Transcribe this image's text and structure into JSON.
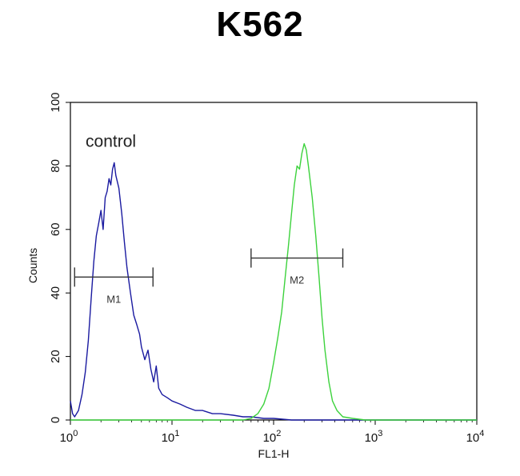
{
  "chart_data": {
    "type": "line",
    "title": "K562",
    "xlabel": "FL1-H",
    "ylabel": "Counts",
    "x_scale": "log",
    "xlim": [
      1,
      10000
    ],
    "ylim": [
      0,
      100
    ],
    "x_ticks": [
      {
        "value": 1,
        "base": "10",
        "exp": "0"
      },
      {
        "value": 10,
        "base": "10",
        "exp": "1"
      },
      {
        "value": 100,
        "base": "10",
        "exp": "2"
      },
      {
        "value": 1000,
        "base": "10",
        "exp": "3"
      },
      {
        "value": 10000,
        "base": "10",
        "exp": "4"
      }
    ],
    "y_ticks": [
      {
        "value": 0,
        "label": "0"
      },
      {
        "value": 20,
        "label": "20"
      },
      {
        "value": 40,
        "label": "40"
      },
      {
        "value": 60,
        "label": "60"
      },
      {
        "value": 80,
        "label": "80"
      },
      {
        "value": 100,
        "label": "100"
      }
    ],
    "grid": false,
    "annotations": [
      {
        "text": "control",
        "x": 2.5,
        "y": 86
      }
    ],
    "markers": [
      {
        "label": "M1",
        "x_start": 1.1,
        "x_end": 6.5,
        "y": 45
      },
      {
        "label": "M2",
        "x_start": 60,
        "x_end": 480,
        "y": 51
      }
    ],
    "series": [
      {
        "color": "#1a1aa0",
        "points": [
          [
            1.0,
            6
          ],
          [
            1.05,
            2
          ],
          [
            1.1,
            1
          ],
          [
            1.2,
            3
          ],
          [
            1.3,
            8
          ],
          [
            1.4,
            15
          ],
          [
            1.5,
            25
          ],
          [
            1.6,
            38
          ],
          [
            1.7,
            50
          ],
          [
            1.8,
            58
          ],
          [
            1.9,
            62
          ],
          [
            2.0,
            66
          ],
          [
            2.1,
            60
          ],
          [
            2.2,
            70
          ],
          [
            2.3,
            72
          ],
          [
            2.4,
            76
          ],
          [
            2.5,
            74
          ],
          [
            2.6,
            79
          ],
          [
            2.7,
            81
          ],
          [
            2.8,
            77
          ],
          [
            3.0,
            73
          ],
          [
            3.2,
            65
          ],
          [
            3.4,
            56
          ],
          [
            3.6,
            48
          ],
          [
            3.9,
            40
          ],
          [
            4.2,
            33
          ],
          [
            4.5,
            30
          ],
          [
            4.8,
            27
          ],
          [
            5.0,
            23
          ],
          [
            5.4,
            19
          ],
          [
            5.8,
            22
          ],
          [
            6.2,
            16
          ],
          [
            6.6,
            12
          ],
          [
            7.0,
            17
          ],
          [
            7.4,
            10
          ],
          [
            8.0,
            8
          ],
          [
            9.0,
            7
          ],
          [
            10,
            6
          ],
          [
            12,
            5
          ],
          [
            14,
            4
          ],
          [
            17,
            3
          ],
          [
            20,
            3
          ],
          [
            25,
            2
          ],
          [
            30,
            2
          ],
          [
            40,
            1.5
          ],
          [
            50,
            1
          ],
          [
            60,
            1
          ],
          [
            80,
            0.5
          ],
          [
            100,
            0.5
          ],
          [
            150,
            0
          ],
          [
            300,
            0
          ],
          [
            1000,
            0
          ],
          [
            10000,
            0
          ]
        ]
      },
      {
        "color": "#3cd23c",
        "points": [
          [
            1.0,
            0
          ],
          [
            20,
            0
          ],
          [
            50,
            0
          ],
          [
            60,
            0.5
          ],
          [
            70,
            2
          ],
          [
            80,
            5
          ],
          [
            90,
            10
          ],
          [
            100,
            18
          ],
          [
            110,
            26
          ],
          [
            120,
            34
          ],
          [
            130,
            45
          ],
          [
            140,
            55
          ],
          [
            150,
            65
          ],
          [
            160,
            74
          ],
          [
            170,
            80
          ],
          [
            180,
            79
          ],
          [
            190,
            84
          ],
          [
            200,
            87
          ],
          [
            210,
            85
          ],
          [
            220,
            80
          ],
          [
            240,
            70
          ],
          [
            260,
            58
          ],
          [
            280,
            45
          ],
          [
            300,
            32
          ],
          [
            320,
            22
          ],
          [
            350,
            12
          ],
          [
            380,
            6
          ],
          [
            420,
            3
          ],
          [
            480,
            1
          ],
          [
            600,
            0.5
          ],
          [
            800,
            0
          ],
          [
            2000,
            0
          ],
          [
            10000,
            0
          ]
        ]
      }
    ]
  }
}
